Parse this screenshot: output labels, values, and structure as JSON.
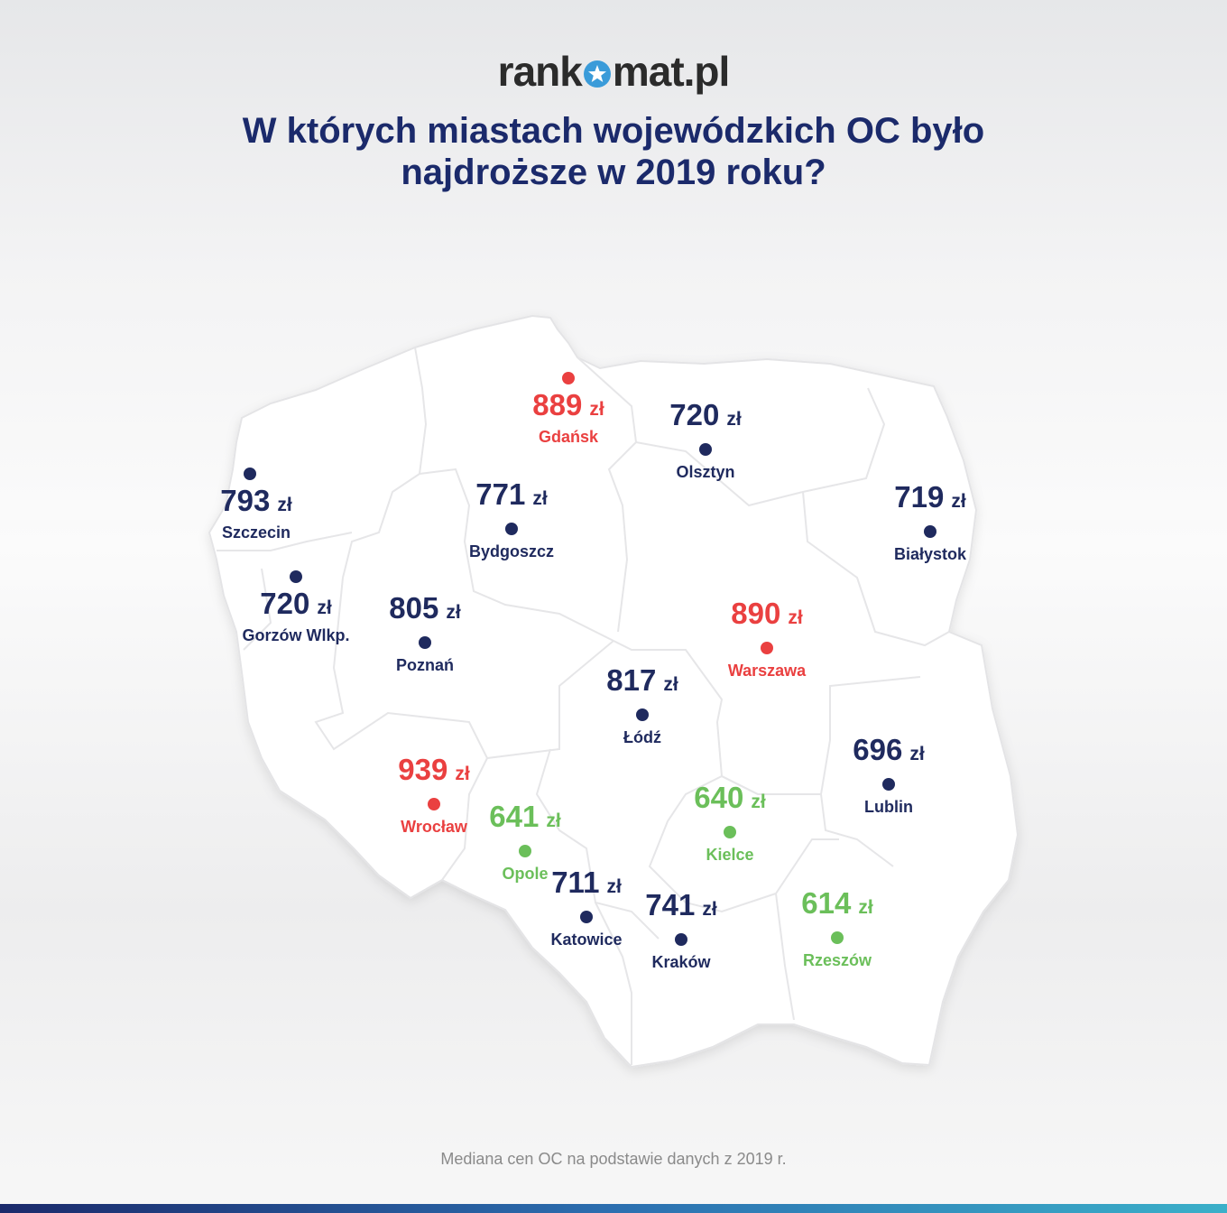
{
  "brand": {
    "logo_left": "rank",
    "logo_right": "mat.pl",
    "logo_icon": "star-circle-icon"
  },
  "title": "W których miastach wojewódzkich OC było najdroższe w 2019 roku?",
  "footnote": "Mediana cen OC na podstawie danych z 2019 r.",
  "colors": {
    "title": "#1b2a6b",
    "normal": "#1f2a5e",
    "high": "#ea4040",
    "low": "#6bbf5a"
  },
  "cities": {
    "gdansk": {
      "value": "889",
      "unit": "zł",
      "name": "Gdańsk",
      "level": "high"
    },
    "olsztyn": {
      "value": "720",
      "unit": "zł",
      "name": "Olsztyn",
      "level": "normal"
    },
    "szczecin": {
      "value": "793",
      "unit": "zł",
      "name": "Szczecin",
      "level": "normal"
    },
    "bydgoszcz": {
      "value": "771",
      "unit": "zł",
      "name": "Bydgoszcz",
      "level": "normal"
    },
    "bialystok": {
      "value": "719",
      "unit": "zł",
      "name": "Białystok",
      "level": "normal"
    },
    "gorzow": {
      "value": "720",
      "unit": "zł",
      "name": "Gorzów Wlkp.",
      "level": "normal"
    },
    "poznan": {
      "value": "805",
      "unit": "zł",
      "name": "Poznań",
      "level": "normal"
    },
    "warszawa": {
      "value": "890",
      "unit": "zł",
      "name": "Warszawa",
      "level": "high"
    },
    "lodz": {
      "value": "817",
      "unit": "zł",
      "name": "Łódź",
      "level": "normal"
    },
    "lublin": {
      "value": "696",
      "unit": "zł",
      "name": "Lublin",
      "level": "normal"
    },
    "wroclaw": {
      "value": "939",
      "unit": "zł",
      "name": "Wrocław",
      "level": "high"
    },
    "opole": {
      "value": "641",
      "unit": "zł",
      "name": "Opole",
      "level": "low"
    },
    "kielce": {
      "value": "640",
      "unit": "zł",
      "name": "Kielce",
      "level": "low"
    },
    "katowice": {
      "value": "711",
      "unit": "zł",
      "name": "Katowice",
      "level": "normal"
    },
    "krakow": {
      "value": "741",
      "unit": "zł",
      "name": "Kraków",
      "level": "normal"
    },
    "rzeszow": {
      "value": "614",
      "unit": "zł",
      "name": "Rzeszów",
      "level": "low"
    }
  }
}
